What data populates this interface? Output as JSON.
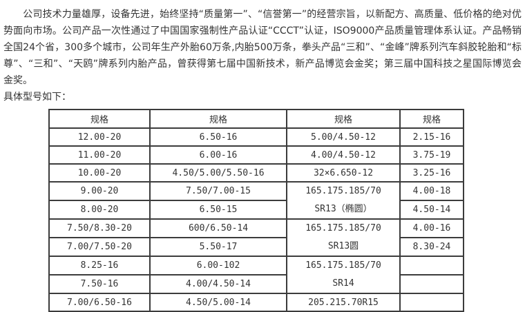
{
  "colors": {
    "text": "#333333",
    "table_border": "#3b3b3b",
    "background": "#ffffff"
  },
  "page": {
    "paragraph": "　　公司技术力量雄厚，设备先进，始终坚持“质量第一”、“信誉第一”的经营宗旨，以新配方、高质量、低价格的绝对优势面向市场。公司产品一次性通过了中国国家强制性产品认证“CCCT”认证，ISO9000产品质量管理体系认证。产品畅销全国24个省，300多个城市，公司年生产外胎60万条,内胎500万条，拳头产品“三和”、“金峰”牌系列汽车斜胶轮胎和“标尊”、“三和”、“天鸥”牌系列内胎产品，曾获得第七届中国新技术，新产品博览会金奖；第三届中国科技之星国际博览会金奖。",
    "table_intro": "具体型号如下："
  },
  "table": {
    "headers": [
      "规格",
      "规格",
      "规格",
      "规格"
    ],
    "rows": [
      [
        "12.00-20",
        "6.50-16",
        "5.00/4.50-12",
        "2.15-16"
      ],
      [
        "11.00-20",
        "6.00-16",
        "4.00/4.50-12",
        "3.75-19"
      ],
      [
        "10.00-20",
        "4.50/5.00/5.50-16",
        "32×6.650-12",
        "3.25-16"
      ],
      [
        "9.00-20",
        "7.50/7.00-15",
        "4.00-18"
      ],
      [
        "8.00-20",
        "6.50-15",
        "4.50-14"
      ],
      [
        "7.50/8.30-20",
        "600/6.50-14",
        "4.00-16"
      ],
      [
        "7.00/7.50-20",
        "5.50-17",
        "8.30-24"
      ],
      [
        "8.25-16",
        "6.00-102",
        ""
      ],
      [
        "7.50-16",
        "4.00/4.50-14",
        ""
      ],
      [
        "7.00/6.50-16",
        "4.50/5.00-14",
        "205.215.70R15",
        ""
      ]
    ],
    "merged_cells": [
      {
        "line1": "165.175.185/70",
        "line2": "SR13（椭圆）"
      },
      {
        "line1": "165.175.185/70",
        "line2": "SR13圆"
      },
      {
        "line1": "165.175.185/70",
        "line2": "SR14"
      }
    ]
  }
}
